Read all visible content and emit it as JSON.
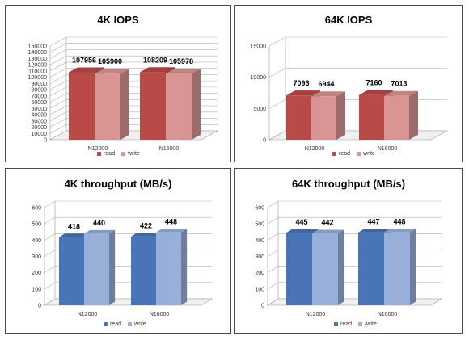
{
  "chart_data": [
    {
      "type": "bar",
      "title": "4K IOPS",
      "categories": [
        "N12000",
        "N16000"
      ],
      "series": [
        {
          "name": "read",
          "values": [
            107956,
            108209
          ]
        },
        {
          "name": "write",
          "values": [
            105900,
            105978
          ]
        }
      ],
      "ylim": [
        0,
        150000
      ],
      "yticks": [
        0,
        10000,
        20000,
        30000,
        40000,
        50000,
        60000,
        70000,
        80000,
        90000,
        100000,
        110000,
        120000,
        130000,
        140000,
        150000
      ],
      "colors": {
        "read": "#b94a48",
        "write": "#d99594"
      },
      "data_labels": true,
      "grid": true,
      "legend_position": "bottom"
    },
    {
      "type": "bar",
      "title": "64K IOPS",
      "categories": [
        "N12000",
        "N16000"
      ],
      "series": [
        {
          "name": "read",
          "values": [
            7093,
            7160
          ]
        },
        {
          "name": "write",
          "values": [
            6944,
            7013
          ]
        }
      ],
      "ylim": [
        0,
        15000
      ],
      "yticks": [
        0,
        5000,
        10000,
        15000
      ],
      "colors": {
        "read": "#b94a48",
        "write": "#d99594"
      },
      "data_labels": true,
      "grid": true,
      "legend_position": "bottom"
    },
    {
      "type": "bar",
      "title": "4K throughput (MB/s)",
      "categories": [
        "N12000",
        "N16000"
      ],
      "series": [
        {
          "name": "read",
          "values": [
            418,
            422
          ]
        },
        {
          "name": "write",
          "values": [
            440,
            448
          ]
        }
      ],
      "ylim": [
        0,
        600
      ],
      "yticks": [
        0,
        100,
        200,
        300,
        400,
        500,
        600
      ],
      "colors": {
        "read": "#4a74b8",
        "write": "#98b0d9"
      },
      "data_labels": true,
      "grid": true,
      "legend_position": "bottom"
    },
    {
      "type": "bar",
      "title": "64K throughput (MB/s)",
      "categories": [
        "N12000",
        "N16000"
      ],
      "series": [
        {
          "name": "read",
          "values": [
            445,
            447
          ]
        },
        {
          "name": "write",
          "values": [
            442,
            448
          ]
        }
      ],
      "ylim": [
        0,
        600
      ],
      "yticks": [
        0,
        100,
        200,
        300,
        400,
        500,
        600
      ],
      "colors": {
        "read": "#4a74b8",
        "write": "#98b0d9"
      },
      "data_labels": true,
      "grid": true,
      "legend_position": "bottom"
    }
  ]
}
